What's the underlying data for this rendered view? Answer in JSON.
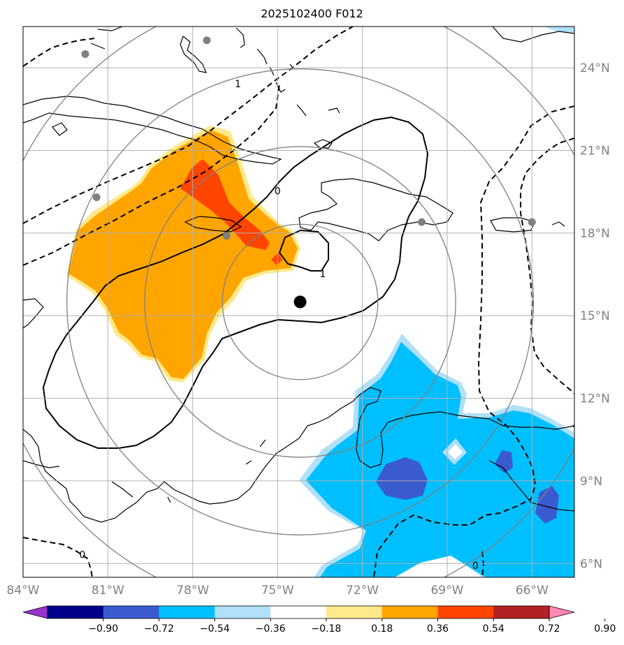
{
  "title": "2025102400 F012",
  "map": {
    "lon_range": [
      -84.0,
      -64.5
    ],
    "lat_range": [
      5.5,
      25.5
    ],
    "lon_ticks": [
      {
        "value": -84,
        "label": "84°W"
      },
      {
        "value": -81,
        "label": "81°W"
      },
      {
        "value": -78,
        "label": "78°W"
      },
      {
        "value": -75,
        "label": "75°W"
      },
      {
        "value": -72,
        "label": "72°W"
      },
      {
        "value": -69,
        "label": "69°W"
      },
      {
        "value": -66,
        "label": "66°W"
      }
    ],
    "lat_ticks": [
      {
        "value": 6,
        "label": "6°N"
      },
      {
        "value": 9,
        "label": "9°N"
      },
      {
        "value": 12,
        "label": "12°N"
      },
      {
        "value": 15,
        "label": "15°N"
      },
      {
        "value": 18,
        "label": "18°N"
      },
      {
        "value": 21,
        "label": "21°N"
      },
      {
        "value": 24,
        "label": "24°N"
      }
    ],
    "tick_color": "#808080",
    "grid": true,
    "center": {
      "lon": -74.2,
      "lat": 15.5
    },
    "range_rings_deg": [
      2.75,
      5.5,
      8.25,
      11.0
    ],
    "stations": [
      {
        "lon": -81.8,
        "lat": 24.5
      },
      {
        "lon": -77.5,
        "lat": 25.0
      },
      {
        "lon": -81.4,
        "lat": 19.3
      },
      {
        "lon": -76.8,
        "lat": 17.9
      },
      {
        "lon": -69.9,
        "lat": 18.4
      },
      {
        "lon": -66.0,
        "lat": 18.4
      }
    ],
    "contour_labels": [
      {
        "text": "0",
        "lon": -75.0,
        "lat": 19.5
      },
      {
        "text": "1",
        "lon": -76.4,
        "lat": 23.4
      },
      {
        "text": "1",
        "lon": -73.4,
        "lat": 16.5
      },
      {
        "text": "0",
        "lon": -68.0,
        "lat": 5.9
      },
      {
        "text": "0",
        "lon": -81.9,
        "lat": 6.3
      }
    ]
  },
  "colorbar": {
    "levels": [
      -0.9,
      -0.72,
      -0.54,
      -0.36,
      -0.18,
      0.18,
      0.36,
      0.54,
      0.72,
      0.9
    ],
    "tick_labels": [
      "−0.90",
      "−0.72",
      "−0.54",
      "−0.36",
      "−0.18",
      "0.18",
      "0.36",
      "0.54",
      "0.72",
      "0.90"
    ],
    "colors": [
      "#9932cc",
      "#00008b",
      "#3a5bd0",
      "#00bfff",
      "#b0e0fa",
      "#ffffff",
      "#ffe98a",
      "#ffa500",
      "#ff4500",
      "#b22222",
      "#ff88b5"
    ],
    "extend": "both"
  }
}
